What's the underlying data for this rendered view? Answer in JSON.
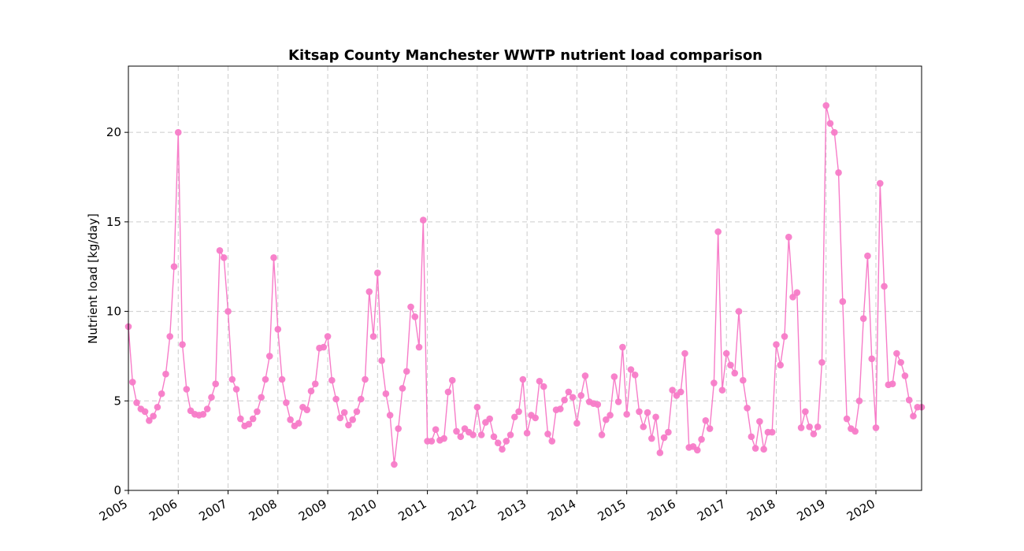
{
  "chart_data": {
    "type": "line",
    "title": "Kitsap County Manchester WWTP nutrient load comparison",
    "xlabel": "",
    "ylabel": "Nutrient load [kg/day]",
    "xlim": [
      "2005-01",
      "2020-12"
    ],
    "ylim": [
      0,
      23.7
    ],
    "x_ticks": [
      "2005",
      "2006",
      "2007",
      "2008",
      "2009",
      "2010",
      "2011",
      "2012",
      "2013",
      "2014",
      "2015",
      "2016",
      "2017",
      "2018",
      "2019",
      "2020"
    ],
    "y_ticks": [
      0,
      5,
      10,
      15,
      20
    ],
    "grid": true,
    "legend": "none",
    "series": [
      {
        "color": "#f77cc8",
        "x": [
          "2005-01",
          "2005-02",
          "2005-03",
          "2005-04",
          "2005-05",
          "2005-06",
          "2005-07",
          "2005-08",
          "2005-09",
          "2005-10",
          "2005-11",
          "2005-12",
          "2006-01",
          "2006-02",
          "2006-03",
          "2006-04",
          "2006-05",
          "2006-06",
          "2006-07",
          "2006-08",
          "2006-09",
          "2006-10",
          "2006-11",
          "2006-12",
          "2007-01",
          "2007-02",
          "2007-03",
          "2007-04",
          "2007-05",
          "2007-06",
          "2007-07",
          "2007-08",
          "2007-09",
          "2007-10",
          "2007-11",
          "2007-12",
          "2008-01",
          "2008-02",
          "2008-03",
          "2008-04",
          "2008-05",
          "2008-06",
          "2008-07",
          "2008-08",
          "2008-09",
          "2008-10",
          "2008-11",
          "2008-12",
          "2009-01",
          "2009-02",
          "2009-03",
          "2009-04",
          "2009-05",
          "2009-06",
          "2009-07",
          "2009-08",
          "2009-09",
          "2009-10",
          "2009-11",
          "2009-12",
          "2010-01",
          "2010-02",
          "2010-03",
          "2010-04",
          "2010-05",
          "2010-06",
          "2010-07",
          "2010-08",
          "2010-09",
          "2010-10",
          "2010-11",
          "2010-12",
          "2011-01",
          "2011-02",
          "2011-03",
          "2011-04",
          "2011-05",
          "2011-06",
          "2011-07",
          "2011-08",
          "2011-09",
          "2011-10",
          "2011-11",
          "2011-12",
          "2012-01",
          "2012-02",
          "2012-03",
          "2012-04",
          "2012-05",
          "2012-06",
          "2012-07",
          "2012-08",
          "2012-09",
          "2012-10",
          "2012-11",
          "2012-12",
          "2013-01",
          "2013-02",
          "2013-03",
          "2013-04",
          "2013-05",
          "2013-06",
          "2013-07",
          "2013-08",
          "2013-09",
          "2013-10",
          "2013-11",
          "2013-12",
          "2014-01",
          "2014-02",
          "2014-03",
          "2014-04",
          "2014-05",
          "2014-06",
          "2014-07",
          "2014-08",
          "2014-09",
          "2014-10",
          "2014-11",
          "2014-12",
          "2015-01",
          "2015-02",
          "2015-03",
          "2015-04",
          "2015-05",
          "2015-06",
          "2015-07",
          "2015-08",
          "2015-09",
          "2015-10",
          "2015-11",
          "2015-12",
          "2016-01",
          "2016-02",
          "2016-03",
          "2016-04",
          "2016-05",
          "2016-06",
          "2016-07",
          "2016-08",
          "2016-09",
          "2016-10",
          "2016-11",
          "2016-12",
          "2017-01",
          "2017-02",
          "2017-03",
          "2017-04",
          "2017-05",
          "2017-06",
          "2017-07",
          "2017-08",
          "2017-09",
          "2017-10",
          "2017-11",
          "2017-12",
          "2018-01",
          "2018-02",
          "2018-03",
          "2018-04",
          "2018-05",
          "2018-06",
          "2018-07",
          "2018-08",
          "2018-09",
          "2018-10",
          "2018-11",
          "2018-12",
          "2019-01",
          "2019-02",
          "2019-03",
          "2019-04",
          "2019-05",
          "2019-06",
          "2019-07",
          "2019-08",
          "2019-09",
          "2019-10",
          "2019-11",
          "2019-12",
          "2020-01",
          "2020-02",
          "2020-03",
          "2020-04",
          "2020-05",
          "2020-06",
          "2020-07",
          "2020-08",
          "2020-09",
          "2020-10",
          "2020-11",
          "2020-12"
        ],
        "y": [
          9.15,
          6.05,
          4.9,
          4.55,
          4.4,
          3.9,
          4.15,
          4.65,
          5.4,
          6.5,
          8.6,
          12.5,
          20.0,
          8.15,
          5.65,
          4.45,
          4.25,
          4.2,
          4.25,
          4.55,
          5.2,
          5.95,
          13.4,
          13.0,
          10.0,
          6.2,
          5.65,
          4.0,
          3.6,
          3.7,
          4.0,
          4.4,
          5.2,
          6.2,
          7.5,
          13.0,
          9.0,
          6.2,
          4.9,
          3.95,
          3.6,
          3.75,
          4.65,
          4.5,
          5.55,
          5.95,
          7.95,
          8.0,
          8.6,
          6.15,
          5.1,
          4.05,
          4.35,
          3.65,
          3.95,
          4.4,
          5.1,
          6.2,
          11.1,
          8.6,
          12.15,
          7.25,
          5.4,
          4.2,
          1.45,
          3.45,
          5.7,
          6.65,
          10.25,
          9.7,
          8.0,
          15.1,
          2.75,
          2.75,
          3.4,
          2.8,
          2.9,
          5.5,
          6.15,
          3.3,
          3.0,
          3.45,
          3.25,
          3.1,
          4.65,
          3.1,
          3.8,
          4.0,
          3.0,
          2.65,
          2.3,
          2.75,
          3.1,
          4.1,
          4.4,
          6.2,
          3.2,
          4.2,
          4.05,
          6.1,
          5.8,
          3.15,
          2.75,
          4.5,
          4.55,
          5.05,
          5.5,
          5.2,
          3.75,
          5.3,
          6.4,
          4.95,
          4.85,
          4.8,
          3.1,
          3.95,
          4.2,
          6.35,
          4.95,
          8.0,
          4.25,
          6.75,
          6.45,
          4.4,
          3.55,
          4.35,
          2.9,
          4.1,
          2.1,
          2.95,
          3.25,
          5.6,
          5.3,
          5.5,
          7.65,
          2.4,
          2.45,
          2.25,
          2.85,
          3.9,
          3.45,
          6.0,
          14.45,
          5.6,
          7.65,
          7.0,
          6.55,
          10.0,
          6.15,
          4.6,
          3.0,
          2.35,
          3.85,
          2.3,
          3.25,
          3.25,
          8.15,
          7.0,
          8.6,
          14.15,
          10.8,
          11.05,
          3.5,
          4.4,
          3.55,
          3.15,
          3.55,
          7.15,
          21.5,
          20.5,
          20.0,
          17.75,
          10.55,
          4.0,
          3.45,
          3.3,
          5.0,
          9.6,
          13.1,
          7.35,
          3.5,
          17.15,
          11.4,
          5.9,
          5.95,
          7.65,
          7.15,
          6.4,
          5.05,
          4.15,
          4.65,
          4.65
        ]
      }
    ]
  }
}
